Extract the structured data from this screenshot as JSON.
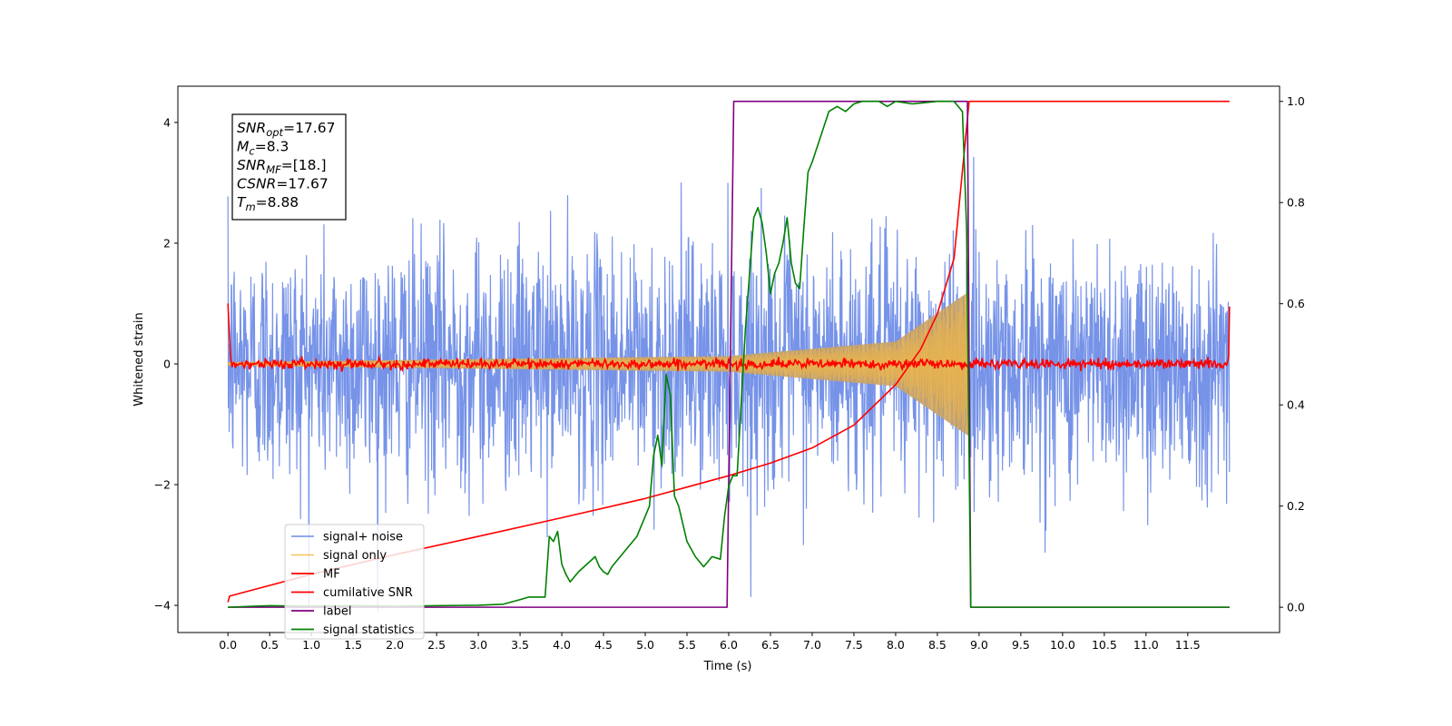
{
  "chart_data": {
    "type": "line",
    "xlabel": "Time (s)",
    "ylabel_left": "Whitened strain",
    "ylabel_right": "",
    "xlim": [
      -0.6,
      12.6
    ],
    "ylim_left": [
      -4.45,
      4.6
    ],
    "ylim_right": [
      -0.05,
      1.03
    ],
    "x_ticks": [
      0.0,
      0.5,
      1.0,
      1.5,
      2.0,
      2.5,
      3.0,
      3.5,
      4.0,
      4.5,
      5.0,
      5.5,
      6.0,
      6.5,
      7.0,
      7.5,
      8.0,
      8.5,
      9.0,
      9.5,
      10.0,
      10.5,
      11.0,
      11.5
    ],
    "x_tick_labels": [
      "0.0",
      "0.5",
      "1.0",
      "1.5",
      "2.0",
      "2.5",
      "3.0",
      "3.5",
      "4.0",
      "4.5",
      "5.0",
      "5.5",
      "6.0",
      "6.5",
      "7.0",
      "7.5",
      "8.0",
      "8.5",
      "9.0",
      "9.5",
      "10.0",
      "10.5",
      "11.0",
      "11.5"
    ],
    "y_left_ticks": [
      -4,
      -2,
      0,
      2,
      4
    ],
    "y_left_tick_labels": [
      "−4",
      "−2",
      "0",
      "2",
      "4"
    ],
    "y_right_ticks": [
      0.0,
      0.2,
      0.4,
      0.6,
      0.8,
      1.0
    ],
    "y_right_tick_labels": [
      "0.0",
      "0.2",
      "0.4",
      "0.6",
      "0.8",
      "1.0"
    ],
    "grid": false,
    "legend_position": "lower-left",
    "annotation": {
      "lines": [
        {
          "base": "SNR",
          "sub": "opt",
          "value": "=17.67"
        },
        {
          "base": "M",
          "sub": "c",
          "value": "=8.3"
        },
        {
          "base": "SNR",
          "sub": "MF",
          "value": "=[18.]"
        },
        {
          "base": "CSNR",
          "sub": "",
          "value": "=17.67"
        },
        {
          "base": "T",
          "sub": "m",
          "value": "=8.88"
        }
      ]
    },
    "series": [
      {
        "name": "signal+ noise",
        "axis": "left",
        "color": "#6a8ae6",
        "description_values": {
          "noise_std": 1.0,
          "x_range": [
            0.0,
            12.0
          ]
        }
      },
      {
        "name": "signal only",
        "axis": "left",
        "color": "#f5b942",
        "chirp_amplitude_at": [
          [
            0.0,
            0.03
          ],
          [
            6.0,
            0.13
          ],
          [
            8.0,
            0.37
          ],
          [
            8.88,
            1.2
          ]
        ]
      },
      {
        "name": "MF",
        "axis": "left",
        "color": "#ff0000",
        "x": [
          0.0,
          0.05,
          12.0,
          12.05
        ],
        "values": [
          1.0,
          0.0,
          0.0,
          0.95
        ]
      },
      {
        "name": "cumilative SNR",
        "axis": "right",
        "color": "#ff0000",
        "x": [
          0.0,
          0.02,
          1.0,
          2.0,
          3.0,
          4.0,
          5.0,
          6.0,
          6.5,
          7.0,
          7.5,
          8.0,
          8.3,
          8.5,
          8.7,
          8.88,
          12.0
        ],
        "values": [
          0.01,
          0.022,
          0.065,
          0.104,
          0.14,
          0.177,
          0.215,
          0.26,
          0.285,
          0.315,
          0.36,
          0.44,
          0.51,
          0.58,
          0.69,
          1.0,
          1.0
        ]
      },
      {
        "name": "label",
        "axis": "right",
        "color": "#800080",
        "x": [
          0.0,
          5.98,
          6.06,
          8.86,
          8.9,
          12.0
        ],
        "values": [
          0.0,
          0.0,
          1.0,
          1.0,
          0.0,
          0.0
        ]
      },
      {
        "name": "signal statistics",
        "axis": "right",
        "color": "#008000",
        "x": [
          0.0,
          0.3,
          0.5,
          1.0,
          1.5,
          2.0,
          2.5,
          3.0,
          3.3,
          3.5,
          3.6,
          3.8,
          3.85,
          3.9,
          3.95,
          4.0,
          4.05,
          4.1,
          4.2,
          4.3,
          4.4,
          4.45,
          4.5,
          4.55,
          4.6,
          4.7,
          4.8,
          4.9,
          5.0,
          5.05,
          5.1,
          5.15,
          5.2,
          5.25,
          5.3,
          5.35,
          5.4,
          5.5,
          5.6,
          5.65,
          5.7,
          5.8,
          5.9,
          5.95,
          6.0,
          6.05,
          6.1,
          6.2,
          6.25,
          6.3,
          6.35,
          6.4,
          6.45,
          6.5,
          6.55,
          6.6,
          6.65,
          6.7,
          6.75,
          6.8,
          6.85,
          6.9,
          6.95,
          7.0,
          7.1,
          7.2,
          7.3,
          7.4,
          7.5,
          7.6,
          7.7,
          7.8,
          7.9,
          8.0,
          8.2,
          8.5,
          8.7,
          8.8,
          8.85,
          8.9,
          9.0,
          10.0,
          11.0,
          12.0
        ],
        "values": [
          0.0,
          0.002,
          0.003,
          0.002,
          0.003,
          0.002,
          0.003,
          0.004,
          0.006,
          0.015,
          0.02,
          0.02,
          0.14,
          0.13,
          0.15,
          0.085,
          0.065,
          0.05,
          0.07,
          0.085,
          0.1,
          0.08,
          0.07,
          0.065,
          0.08,
          0.1,
          0.12,
          0.14,
          0.18,
          0.2,
          0.3,
          0.34,
          0.28,
          0.46,
          0.42,
          0.22,
          0.2,
          0.13,
          0.1,
          0.09,
          0.08,
          0.1,
          0.095,
          0.18,
          0.24,
          0.26,
          0.26,
          0.55,
          0.66,
          0.77,
          0.79,
          0.76,
          0.7,
          0.62,
          0.66,
          0.68,
          0.72,
          0.77,
          0.68,
          0.64,
          0.63,
          0.75,
          0.86,
          0.88,
          0.93,
          0.98,
          0.99,
          0.98,
          0.995,
          1.0,
          1.0,
          1.0,
          0.99,
          1.0,
          0.995,
          1.0,
          1.0,
          0.98,
          0.75,
          0.0,
          0.0,
          0.0,
          0.0,
          0.0
        ]
      }
    ]
  }
}
